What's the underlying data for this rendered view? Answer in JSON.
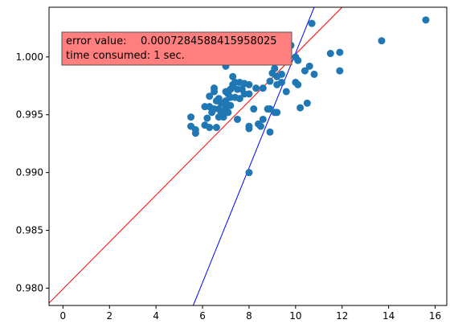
{
  "chart_data": {
    "type": "scatter",
    "title": "",
    "xlabel": "",
    "ylabel": "",
    "xlim": [
      -0.6,
      16.5
    ],
    "ylim": [
      0.9785,
      1.0043
    ],
    "x_ticks": [
      0,
      2,
      4,
      6,
      8,
      10,
      12,
      14,
      16
    ],
    "x_tick_labels": [
      "0",
      "2",
      "4",
      "6",
      "8",
      "10",
      "12",
      "14",
      "16"
    ],
    "y_ticks": [
      0.98,
      0.985,
      0.99,
      0.995,
      1.0
    ],
    "y_tick_labels": [
      "0.980",
      "0.985",
      "0.990",
      "0.995",
      "1.000"
    ],
    "grid": false,
    "point_color": "#1f77b4",
    "points": [
      [
        15.6,
        1.0032
      ],
      [
        13.7,
        1.0014
      ],
      [
        11.9,
        1.0004
      ],
      [
        11.5,
        1.0003
      ],
      [
        11.9,
        0.9988
      ],
      [
        10.7,
        1.0029
      ],
      [
        9.8,
        1.001
      ],
      [
        10.6,
        0.9992
      ],
      [
        10.8,
        0.9985
      ],
      [
        10.4,
        0.9988
      ],
      [
        10.0,
        1.0
      ],
      [
        10.1,
        0.9997
      ],
      [
        9.6,
        1.0002
      ],
      [
        10.0,
        0.9978
      ],
      [
        10.1,
        0.9976
      ],
      [
        10.5,
        0.996
      ],
      [
        10.2,
        0.9956
      ],
      [
        9.4,
        0.9985
      ],
      [
        9.2,
        0.9983
      ],
      [
        9.0,
        0.9986
      ],
      [
        9.1,
        0.999
      ],
      [
        9.4,
        0.9978
      ],
      [
        9.2,
        0.9976
      ],
      [
        9.6,
        0.997
      ],
      [
        8.9,
        0.9979
      ],
      [
        8.6,
        0.9973
      ],
      [
        8.3,
        0.9973
      ],
      [
        8.8,
        0.9955
      ],
      [
        8.9,
        0.9955
      ],
      [
        9.1,
        0.9952
      ],
      [
        9.2,
        0.9952
      ],
      [
        8.6,
        0.9946
      ],
      [
        8.4,
        0.9942
      ],
      [
        8.5,
        0.994
      ],
      [
        8.0,
        0.9938
      ],
      [
        8.0,
        0.994
      ],
      [
        8.9,
        0.9935
      ],
      [
        8.2,
        0.9955
      ],
      [
        8.0,
        0.9968
      ],
      [
        7.8,
        0.9968
      ],
      [
        7.7,
        0.9972
      ],
      [
        8.0,
        0.9976
      ],
      [
        7.8,
        0.9977
      ],
      [
        7.6,
        0.9978
      ],
      [
        7.4,
        0.9978
      ],
      [
        7.3,
        0.9976
      ],
      [
        7.5,
        0.9972
      ],
      [
        7.2,
        0.9972
      ],
      [
        7.3,
        0.9983
      ],
      [
        7.0,
        0.9992
      ],
      [
        7.0,
        0.997
      ],
      [
        7.1,
        0.9968
      ],
      [
        7.2,
        0.9965
      ],
      [
        7.4,
        0.9965
      ],
      [
        7.6,
        0.9964
      ],
      [
        7.0,
        0.9962
      ],
      [
        6.9,
        0.996
      ],
      [
        7.2,
        0.9958
      ],
      [
        7.0,
        0.9956
      ],
      [
        6.8,
        0.996
      ],
      [
        6.7,
        0.9964
      ],
      [
        6.6,
        0.9962
      ],
      [
        6.5,
        0.997
      ],
      [
        6.5,
        0.9973
      ],
      [
        6.3,
        0.9966
      ],
      [
        6.1,
        0.9957
      ],
      [
        6.3,
        0.9957
      ],
      [
        6.5,
        0.9955
      ],
      [
        6.7,
        0.9955
      ],
      [
        6.8,
        0.9952
      ],
      [
        7.0,
        0.9954
      ],
      [
        7.1,
        0.9952
      ],
      [
        6.7,
        0.9948
      ],
      [
        6.9,
        0.9948
      ],
      [
        6.4,
        0.9952
      ],
      [
        6.2,
        0.9947
      ],
      [
        6.6,
        0.9939
      ],
      [
        6.3,
        0.9939
      ],
      [
        6.1,
        0.9941
      ],
      [
        5.5,
        0.9948
      ],
      [
        5.5,
        0.994
      ],
      [
        5.7,
        0.9937
      ],
      [
        5.7,
        0.9934
      ],
      [
        7.5,
        0.9946
      ],
      [
        8.0,
        0.99
      ]
    ],
    "lines": [
      {
        "name": "",
        "color": "#ff0000",
        "x": [
          -0.7,
          12.0
        ],
        "y": [
          0.9785,
          1.0043
        ]
      },
      {
        "name": "",
        "color": "#0000ff",
        "x": [
          5.6,
          10.8
        ],
        "y": [
          0.9785,
          1.0043
        ]
      }
    ],
    "annotation": {
      "line1_label": "error value:",
      "line1_value": "0.0007284588415958025",
      "line2": "time consumed: 1 sec.",
      "background": "#ff7f7f"
    }
  }
}
